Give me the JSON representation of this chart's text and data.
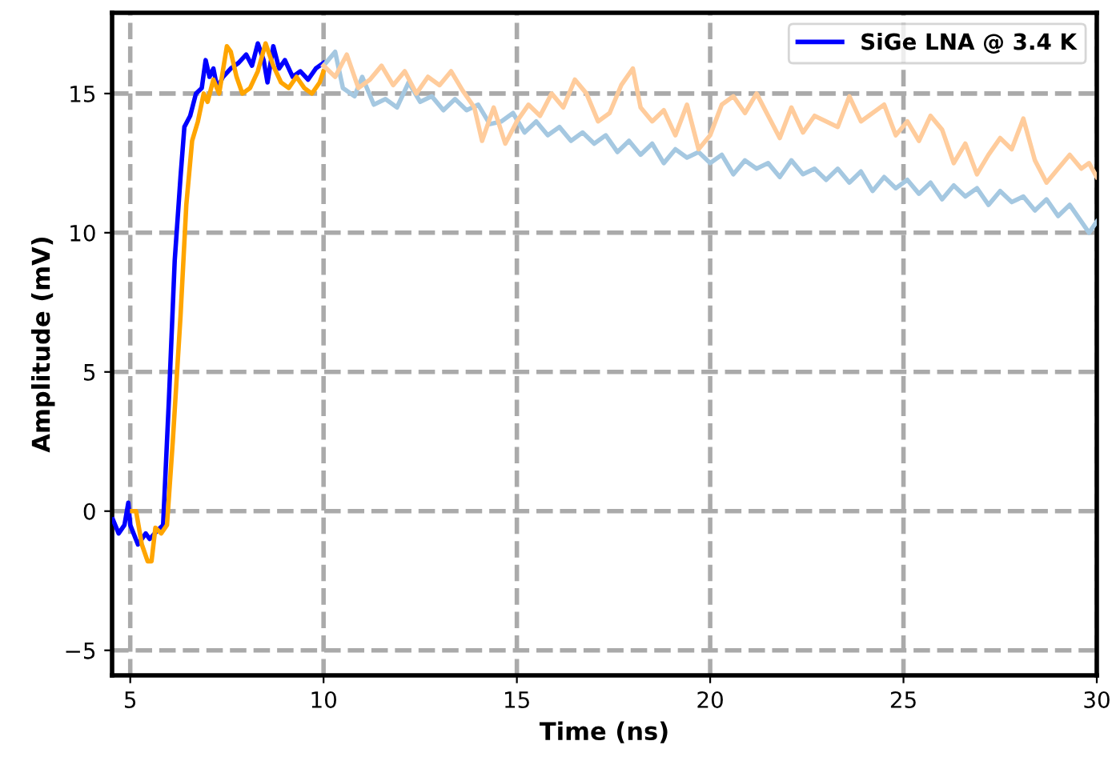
{
  "chart_data": {
    "type": "line",
    "xlabel": "Time (ns)",
    "ylabel": "Amplitude (mV)",
    "xlim": [
      4.53,
      30
    ],
    "ylim": [
      -5.9,
      17.9
    ],
    "xticks": [
      5,
      10,
      15,
      20,
      25,
      30
    ],
    "yticks": [
      -5,
      0,
      5,
      10,
      15
    ],
    "grid": true,
    "legend": "top right",
    "line_style": "solid",
    "marker": "none",
    "series": [
      {
        "name": "SiGe LNA @ 3.4 K",
        "color": "#0000ff",
        "x": [
          4.55,
          4.7,
          4.85,
          4.95,
          5.0,
          5.2,
          5.4,
          5.5,
          5.7,
          5.85,
          6.0,
          6.15,
          6.3,
          6.4,
          6.55,
          6.7,
          6.85,
          6.95,
          7.05,
          7.15,
          7.25,
          7.4,
          7.6,
          7.8,
          8.0,
          8.15,
          8.3,
          8.45,
          8.55,
          8.7,
          8.85,
          9.0,
          9.2,
          9.4,
          9.6,
          9.8,
          10.0
        ],
        "values": [
          -0.3,
          -0.8,
          -0.5,
          0.3,
          -0.5,
          -1.2,
          -0.8,
          -1.0,
          -0.7,
          -0.5,
          4,
          9,
          12,
          13.8,
          14.2,
          15.0,
          15.2,
          16.2,
          15.6,
          15.9,
          15.2,
          15.6,
          15.9,
          16.1,
          16.4,
          16.0,
          16.8,
          16.2,
          15.4,
          16.7,
          15.9,
          16.2,
          15.6,
          15.8,
          15.5,
          15.9,
          16.1
        ]
      },
      {
        "color": "#ffa500",
        "x": [
          5.05,
          5.15,
          5.3,
          5.45,
          5.55,
          5.65,
          5.8,
          5.95,
          6.1,
          6.3,
          6.45,
          6.6,
          6.75,
          6.9,
          7.0,
          7.15,
          7.3,
          7.5,
          7.6,
          7.75,
          7.9,
          8.1,
          8.3,
          8.5,
          8.7,
          8.9,
          9.1,
          9.3,
          9.5,
          9.7,
          9.9,
          10.0
        ],
        "values": [
          0,
          0,
          -1.2,
          -1.8,
          -1.8,
          -0.6,
          -0.8,
          -0.5,
          2.5,
          7,
          11,
          13.3,
          14.0,
          15.0,
          14.7,
          15.5,
          15.0,
          16.7,
          16.5,
          15.6,
          15.0,
          15.2,
          15.8,
          16.8,
          16.0,
          15.4,
          15.2,
          15.6,
          15.2,
          15.0,
          15.4,
          15.8
        ]
      },
      {
        "color": "#a5c8e1",
        "x": [
          10.0,
          10.3,
          10.5,
          10.8,
          11.0,
          11.3,
          11.6,
          11.9,
          12.2,
          12.5,
          12.8,
          13.1,
          13.4,
          13.7,
          14.0,
          14.3,
          14.6,
          14.9,
          15.2,
          15.5,
          15.8,
          16.1,
          16.4,
          16.7,
          17.0,
          17.3,
          17.6,
          17.9,
          18.2,
          18.5,
          18.8,
          19.1,
          19.4,
          19.7,
          20.0,
          20.3,
          20.6,
          20.9,
          21.2,
          21.5,
          21.8,
          22.1,
          22.4,
          22.7,
          23.0,
          23.3,
          23.6,
          23.9,
          24.2,
          24.5,
          24.8,
          25.1,
          25.4,
          25.7,
          26.0,
          26.3,
          26.6,
          26.9,
          27.2,
          27.5,
          27.8,
          28.1,
          28.4,
          28.7,
          29.0,
          29.3,
          29.6,
          29.8,
          30.0
        ],
        "values": [
          16.0,
          16.5,
          15.2,
          14.9,
          15.6,
          14.6,
          14.8,
          14.5,
          15.4,
          14.7,
          14.9,
          14.4,
          14.8,
          14.4,
          14.6,
          13.9,
          14.0,
          14.3,
          13.6,
          14.0,
          13.5,
          13.8,
          13.3,
          13.6,
          13.2,
          13.5,
          12.9,
          13.3,
          12.8,
          13.2,
          12.5,
          13.0,
          12.7,
          12.9,
          12.5,
          12.8,
          12.1,
          12.6,
          12.3,
          12.5,
          12.0,
          12.6,
          12.1,
          12.3,
          11.9,
          12.3,
          11.8,
          12.2,
          11.5,
          12.0,
          11.6,
          11.9,
          11.4,
          11.8,
          11.2,
          11.7,
          11.3,
          11.6,
          11.0,
          11.5,
          11.1,
          11.3,
          10.8,
          11.2,
          10.6,
          11.0,
          10.4,
          10.0,
          10.4
        ]
      },
      {
        "color": "#ffcc9c",
        "x": [
          10.0,
          10.3,
          10.6,
          10.9,
          11.2,
          11.5,
          11.8,
          12.1,
          12.4,
          12.7,
          13.0,
          13.3,
          13.6,
          13.9,
          14.1,
          14.4,
          14.7,
          15.0,
          15.3,
          15.6,
          15.9,
          16.2,
          16.5,
          16.8,
          17.1,
          17.4,
          17.7,
          18.0,
          18.2,
          18.5,
          18.8,
          19.1,
          19.4,
          19.7,
          20.0,
          20.3,
          20.6,
          20.9,
          21.2,
          21.5,
          21.8,
          22.1,
          22.4,
          22.7,
          23.0,
          23.3,
          23.6,
          23.9,
          24.2,
          24.5,
          24.8,
          25.1,
          25.4,
          25.7,
          26.0,
          26.3,
          26.6,
          26.9,
          27.2,
          27.5,
          27.8,
          28.1,
          28.4,
          28.7,
          29.0,
          29.3,
          29.6,
          29.8,
          30.0
        ],
        "values": [
          16.0,
          15.6,
          16.4,
          15.2,
          15.5,
          16.0,
          15.3,
          15.8,
          15.0,
          15.6,
          15.3,
          15.8,
          15.1,
          14.5,
          13.3,
          14.5,
          13.2,
          14.0,
          14.6,
          14.2,
          15.0,
          14.5,
          15.5,
          15.0,
          14.0,
          14.3,
          15.3,
          15.9,
          14.5,
          14.0,
          14.4,
          13.5,
          14.6,
          13.0,
          13.5,
          14.6,
          14.9,
          14.3,
          15.0,
          14.2,
          13.4,
          14.5,
          13.6,
          14.2,
          14.0,
          13.8,
          14.9,
          14.0,
          14.3,
          14.6,
          13.5,
          14.0,
          13.3,
          14.2,
          13.7,
          12.5,
          13.2,
          12.1,
          12.8,
          13.4,
          13.0,
          14.1,
          12.6,
          11.8,
          12.3,
          12.8,
          12.3,
          12.5,
          12.0
        ]
      }
    ]
  }
}
